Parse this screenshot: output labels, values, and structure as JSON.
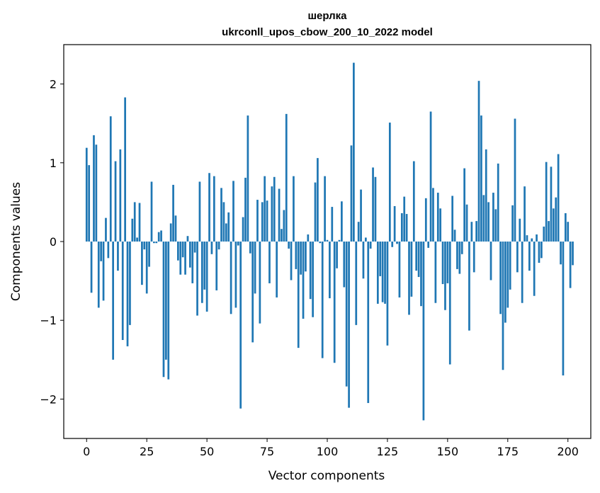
{
  "chart_data": {
    "type": "bar",
    "title_line1": "шерлка",
    "title_line2": "ukrconll_upos_cbow_200_10_2022 model",
    "xlabel": "Vector components",
    "ylabel": "Components values",
    "xlim": [
      -9.5,
      209.5
    ],
    "ylim": [
      -2.5,
      2.5
    ],
    "xticks": [
      0,
      25,
      50,
      75,
      100,
      125,
      150,
      175,
      200
    ],
    "xtick_labels": [
      "0",
      "25",
      "50",
      "75",
      "100",
      "125",
      "150",
      "175",
      "200"
    ],
    "yticks": [
      -2,
      -1,
      0,
      1,
      2
    ],
    "ytick_labels": [
      "−2",
      "−1",
      "0",
      "1",
      "2"
    ],
    "bar_color": "#1f77b4",
    "grid": false,
    "values": [
      1.19,
      0.97,
      -0.65,
      1.35,
      1.23,
      -0.84,
      -0.25,
      -0.75,
      0.3,
      -0.21,
      1.59,
      -1.5,
      1.02,
      -0.37,
      1.17,
      -1.25,
      1.83,
      -1.33,
      -1.06,
      0.29,
      0.5,
      0.05,
      0.49,
      -0.55,
      -0.1,
      -0.66,
      -0.32,
      0.76,
      -0.02,
      -0.02,
      0.12,
      0.14,
      -1.72,
      -1.5,
      -1.75,
      0.23,
      0.72,
      0.33,
      -0.24,
      -0.42,
      -0.2,
      -0.42,
      0.07,
      -0.33,
      -0.53,
      -0.14,
      -0.94,
      0.76,
      -0.78,
      -0.61,
      -0.89,
      0.87,
      -0.16,
      0.83,
      -0.62,
      -0.1,
      0.68,
      0.5,
      0.23,
      0.37,
      -0.92,
      0.77,
      -0.84,
      -0.05,
      -2.12,
      0.31,
      0.81,
      1.6,
      -0.15,
      -1.28,
      -0.66,
      0.53,
      -1.04,
      0.5,
      0.83,
      0.52,
      -0.53,
      0.7,
      0.82,
      -0.71,
      0.67,
      0.16,
      0.4,
      1.62,
      -0.09,
      -0.49,
      0.83,
      -0.35,
      -1.35,
      -0.42,
      -0.98,
      -0.38,
      0.09,
      -0.73,
      -0.96,
      0.75,
      1.06,
      -0.02,
      -1.48,
      0.83,
      0.02,
      -0.72,
      0.44,
      -1.54,
      -0.34,
      0.02,
      0.51,
      -0.58,
      -1.84,
      -2.11,
      1.22,
      2.27,
      -1.06,
      0.25,
      0.66,
      -0.47,
      0.05,
      -2.05,
      -0.09,
      0.94,
      0.82,
      -0.79,
      -0.44,
      -0.77,
      -0.79,
      -1.32,
      1.51,
      -0.07,
      0.45,
      -0.03,
      -0.71,
      0.36,
      0.57,
      0.35,
      -0.93,
      -0.7,
      1.02,
      -0.37,
      -0.45,
      -0.82,
      -2.27,
      0.55,
      -0.08,
      1.65,
      0.68,
      -0.78,
      0.62,
      0.42,
      -0.54,
      -0.87,
      -0.53,
      -1.56,
      0.58,
      0.15,
      -0.35,
      -0.41,
      -0.16,
      0.93,
      0.47,
      -1.13,
      0.25,
      -0.39,
      0.26,
      2.04,
      1.6,
      0.59,
      1.17,
      0.5,
      -0.49,
      0.62,
      0.41,
      0.99,
      -0.92,
      -1.63,
      -1.03,
      -0.84,
      -0.61,
      0.46,
      1.56,
      -0.39,
      0.29,
      -0.78,
      0.7,
      0.08,
      -0.37,
      0.04,
      -0.69,
      0.09,
      -0.27,
      -0.21,
      0.19,
      1.01,
      0.26,
      0.95,
      0.42,
      0.56,
      1.11,
      -0.29,
      -1.7,
      0.36,
      0.25,
      -0.59,
      -0.3
    ]
  }
}
